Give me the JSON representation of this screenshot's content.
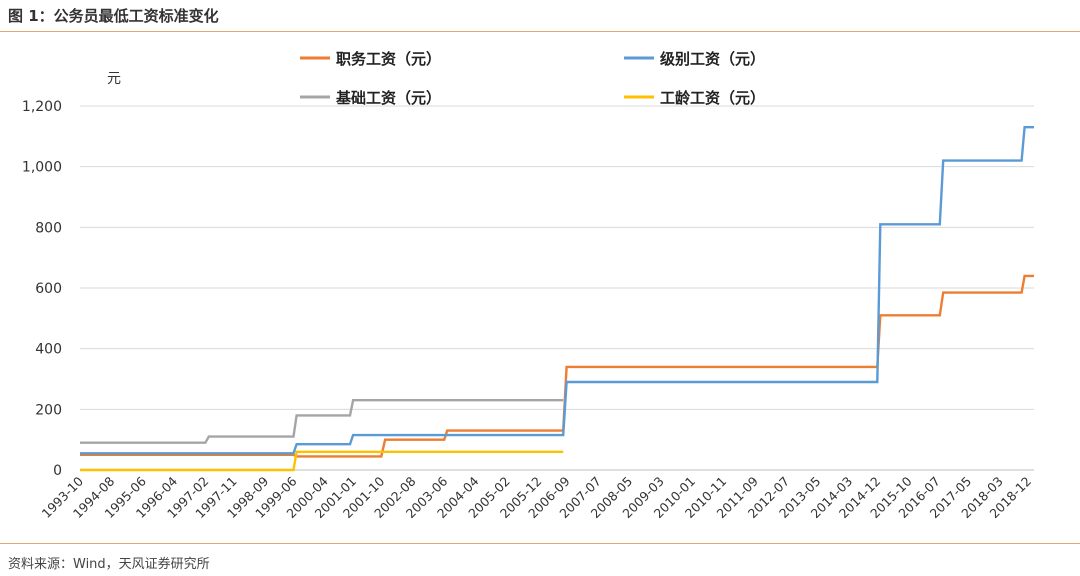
{
  "header": {
    "title": "图 1：公务员最低工资标准变化"
  },
  "footer": {
    "source": "资料来源：Wind，天风证券研究所"
  },
  "chart_data": {
    "type": "line",
    "step": true,
    "unit_label": "元",
    "title": "",
    "xlabel": "",
    "ylabel": "",
    "ylim": [
      0,
      1200
    ],
    "yticks": [
      0,
      200,
      400,
      600,
      800,
      1000,
      1200
    ],
    "ytick_labels": [
      "0",
      "200",
      "400",
      "600",
      "800",
      "1,000",
      "1,200"
    ],
    "xlim": [
      1993.75,
      2019.08
    ],
    "xticks": [
      {
        "label": "1993-10",
        "t": 1993.75
      },
      {
        "label": "1994-08",
        "t": 1994.58
      },
      {
        "label": "1995-06",
        "t": 1995.42
      },
      {
        "label": "1996-04",
        "t": 1996.25
      },
      {
        "label": "1997-02",
        "t": 1997.08
      },
      {
        "label": "1997-11",
        "t": 1997.83
      },
      {
        "label": "1998-09",
        "t": 1998.67
      },
      {
        "label": "1999-06",
        "t": 1999.42
      },
      {
        "label": "2000-04",
        "t": 2000.25
      },
      {
        "label": "2001-01",
        "t": 2001.0
      },
      {
        "label": "2001-10",
        "t": 2001.75
      },
      {
        "label": "2002-08",
        "t": 2002.58
      },
      {
        "label": "2003-06",
        "t": 2003.42
      },
      {
        "label": "2004-04",
        "t": 2004.25
      },
      {
        "label": "2005-02",
        "t": 2005.08
      },
      {
        "label": "2005-12",
        "t": 2005.92
      },
      {
        "label": "2006-09",
        "t": 2006.67
      },
      {
        "label": "2007-07",
        "t": 2007.5
      },
      {
        "label": "2008-05",
        "t": 2008.33
      },
      {
        "label": "2009-03",
        "t": 2009.17
      },
      {
        "label": "2010-01",
        "t": 2010.0
      },
      {
        "label": "2010-11",
        "t": 2010.83
      },
      {
        "label": "2011-09",
        "t": 2011.67
      },
      {
        "label": "2012-07",
        "t": 2012.5
      },
      {
        "label": "2013-05",
        "t": 2013.33
      },
      {
        "label": "2014-03",
        "t": 2014.17
      },
      {
        "label": "2014-12",
        "t": 2014.92
      },
      {
        "label": "2015-10",
        "t": 2015.75
      },
      {
        "label": "2016-07",
        "t": 2016.5
      },
      {
        "label": "2017-05",
        "t": 2017.33
      },
      {
        "label": "2018-03",
        "t": 2018.17
      },
      {
        "label": "2018-12",
        "t": 2018.92
      }
    ],
    "grid": true,
    "legend": "top",
    "series": [
      {
        "name": "职务工资（元）",
        "color": "#ed7d31",
        "points": [
          [
            1993.75,
            50
          ],
          [
            1999.42,
            50
          ],
          [
            1999.5,
            45
          ],
          [
            2001.75,
            45
          ],
          [
            2001.85,
            100
          ],
          [
            2003.42,
            100
          ],
          [
            2003.5,
            130
          ],
          [
            2006.58,
            130
          ],
          [
            2006.67,
            340
          ],
          [
            2014.92,
            340
          ],
          [
            2015.0,
            510
          ],
          [
            2016.58,
            510
          ],
          [
            2016.67,
            585
          ],
          [
            2018.75,
            585
          ],
          [
            2018.83,
            640
          ],
          [
            2019.08,
            640
          ]
        ]
      },
      {
        "name": "级别工资（元）",
        "color": "#5b9bd5",
        "points": [
          [
            1993.75,
            55
          ],
          [
            1999.42,
            55
          ],
          [
            1999.5,
            85
          ],
          [
            2000.92,
            85
          ],
          [
            2001.0,
            115
          ],
          [
            2006.58,
            115
          ],
          [
            2006.67,
            290
          ],
          [
            2014.92,
            290
          ],
          [
            2015.0,
            810
          ],
          [
            2016.58,
            810
          ],
          [
            2016.67,
            1020
          ],
          [
            2018.75,
            1020
          ],
          [
            2018.83,
            1130
          ],
          [
            2019.08,
            1130
          ]
        ]
      },
      {
        "name": "基础工资（元）",
        "color": "#a5a5a5",
        "points": [
          [
            1993.75,
            90
          ],
          [
            1997.08,
            90
          ],
          [
            1997.17,
            110
          ],
          [
            1999.42,
            110
          ],
          [
            1999.5,
            180
          ],
          [
            2000.92,
            180
          ],
          [
            2001.0,
            230
          ],
          [
            2006.58,
            230
          ]
        ]
      },
      {
        "name": "工龄工资（元）",
        "color": "#ffc000",
        "points": [
          [
            1993.75,
            0
          ],
          [
            1999.42,
            0
          ],
          [
            1999.5,
            60
          ],
          [
            2006.58,
            60
          ]
        ]
      }
    ]
  }
}
